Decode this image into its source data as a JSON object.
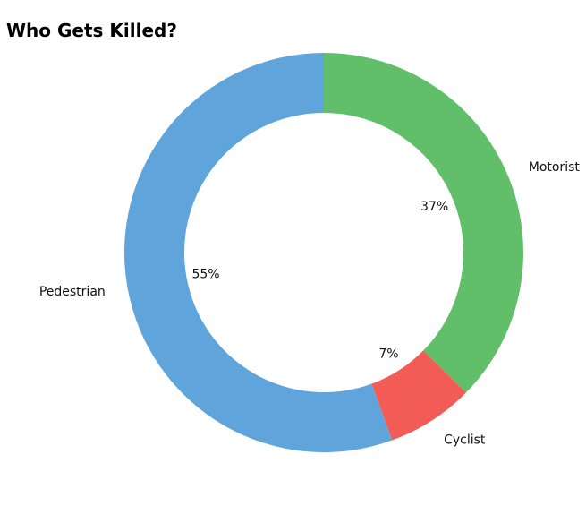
{
  "chart_data": {
    "type": "pie",
    "variant": "donut",
    "title": "Who Gets Killed?",
    "slices": [
      {
        "label": "Motorist",
        "value": 37,
        "pct_label": "37%",
        "color": "#61bf69"
      },
      {
        "label": "Cyclist",
        "value": 7,
        "pct_label": "7%",
        "color": "#f25b56"
      },
      {
        "label": "Pedestrian",
        "value": 55,
        "pct_label": "55%",
        "color": "#5fa5db"
      }
    ],
    "start": "top",
    "direction": "clockwise",
    "legend": "none"
  }
}
